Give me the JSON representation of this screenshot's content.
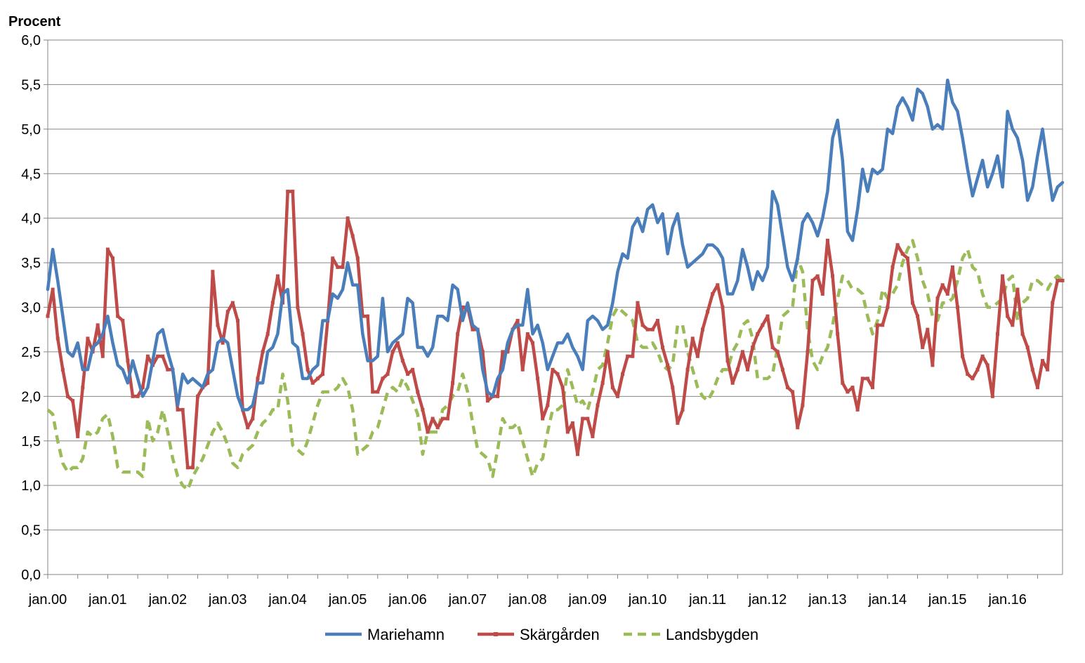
{
  "chart_data": {
    "type": "line",
    "title": "",
    "ylabel": "Procent",
    "xlabel": "",
    "ylim": [
      0,
      6
    ],
    "y_ticks": [
      0,
      0.5,
      1,
      1.5,
      2,
      2.5,
      3,
      3.5,
      4,
      4.5,
      5,
      5.5,
      6
    ],
    "y_tick_labels": [
      "0,0",
      "0,5",
      "1,0",
      "1,5",
      "2,0",
      "2,5",
      "3,0",
      "3,5",
      "4,0",
      "4,5",
      "5,0",
      "5,5",
      "6,0"
    ],
    "x_tick_labels": [
      "jan.00",
      "jan.01",
      "jan.02",
      "jan.03",
      "jan.04",
      "jan.05",
      "jan.06",
      "jan.07",
      "jan.08",
      "jan.09",
      "jan.10",
      "jan.11",
      "jan.12",
      "jan.13",
      "jan.14",
      "jan.15",
      "jan.16"
    ],
    "x_start": "2000-01",
    "x_frequency": "monthly",
    "grid": "horizontal",
    "legend_position": "bottom",
    "series": [
      {
        "name": "Mariehamn",
        "color": "#4a7ebb",
        "style": "solid",
        "values": [
          3.2,
          3.65,
          3.3,
          2.9,
          2.5,
          2.45,
          2.6,
          2.3,
          2.3,
          2.55,
          2.6,
          2.7,
          2.9,
          2.6,
          2.35,
          2.3,
          2.15,
          2.4,
          2.2,
          2.0,
          2.1,
          2.4,
          2.7,
          2.75,
          2.5,
          2.3,
          1.9,
          2.25,
          2.15,
          2.2,
          2.15,
          2.1,
          2.25,
          2.3,
          2.6,
          2.65,
          2.6,
          2.3,
          2.0,
          1.85,
          1.85,
          1.9,
          2.15,
          2.15,
          2.5,
          2.55,
          2.7,
          3.15,
          3.2,
          2.6,
          2.55,
          2.2,
          2.2,
          2.3,
          2.35,
          2.85,
          2.85,
          3.15,
          3.1,
          3.2,
          3.5,
          3.25,
          3.25,
          2.7,
          2.4,
          2.4,
          2.45,
          3.1,
          2.5,
          2.6,
          2.65,
          2.7,
          3.1,
          3.05,
          2.55,
          2.55,
          2.45,
          2.55,
          2.9,
          2.9,
          2.85,
          3.25,
          3.2,
          2.85,
          3.05,
          2.8,
          2.75,
          2.3,
          2.05,
          2.0,
          2.2,
          2.3,
          2.6,
          2.75,
          2.8,
          2.8,
          3.2,
          2.7,
          2.8,
          2.6,
          2.3,
          2.45,
          2.6,
          2.6,
          2.7,
          2.55,
          2.45,
          2.3,
          2.85,
          2.9,
          2.85,
          2.75,
          2.8,
          3.05,
          3.4,
          3.6,
          3.55,
          3.9,
          4.0,
          3.85,
          4.1,
          4.15,
          3.95,
          4.05,
          3.6,
          3.9,
          4.05,
          3.7,
          3.45,
          3.5,
          3.55,
          3.6,
          3.7,
          3.7,
          3.65,
          3.55,
          3.15,
          3.15,
          3.3,
          3.65,
          3.45,
          3.2,
          3.4,
          3.3,
          3.45,
          4.3,
          4.15,
          3.8,
          3.45,
          3.3,
          3.55,
          3.95,
          4.05,
          3.95,
          3.8,
          4.0,
          4.3,
          4.9,
          5.1,
          4.65,
          3.85,
          3.75,
          4.1,
          4.55,
          4.3,
          4.55,
          4.5,
          4.55,
          5.0,
          4.95,
          5.25,
          5.35,
          5.25,
          5.1,
          5.45,
          5.4,
          5.25,
          5.0,
          5.05,
          5.0,
          5.55,
          5.3,
          5.2,
          4.9,
          4.55,
          4.25,
          4.45,
          4.65,
          4.35,
          4.5,
          4.7,
          4.35,
          5.2,
          5.0,
          4.9,
          4.65,
          4.2,
          4.35,
          4.7,
          5.0,
          4.6,
          4.2,
          4.35,
          4.4
        ]
      },
      {
        "name": "Skärgården",
        "color": "#be4b48",
        "style": "solid-markers",
        "values": [
          2.9,
          3.2,
          2.65,
          2.3,
          2.0,
          1.95,
          1.55,
          2.1,
          2.65,
          2.5,
          2.8,
          2.45,
          3.65,
          3.55,
          2.9,
          2.85,
          2.4,
          2.0,
          2.0,
          2.1,
          2.45,
          2.35,
          2.45,
          2.45,
          2.3,
          2.3,
          1.85,
          1.85,
          1.2,
          1.2,
          2.0,
          2.1,
          2.15,
          3.4,
          2.8,
          2.6,
          2.95,
          3.05,
          2.85,
          1.85,
          1.65,
          1.75,
          2.2,
          2.5,
          2.7,
          3.05,
          3.35,
          3.05,
          4.3,
          4.3,
          3.0,
          2.7,
          2.3,
          2.15,
          2.2,
          2.25,
          2.85,
          3.55,
          3.45,
          3.45,
          4.0,
          3.8,
          3.55,
          2.9,
          2.9,
          2.05,
          2.05,
          2.2,
          2.25,
          2.5,
          2.6,
          2.4,
          2.25,
          2.3,
          2.05,
          1.85,
          1.6,
          1.75,
          1.65,
          1.75,
          1.75,
          2.15,
          2.7,
          3.0,
          3.0,
          2.75,
          2.75,
          2.5,
          1.95,
          2.0,
          2.0,
          2.5,
          2.5,
          2.75,
          2.85,
          2.3,
          2.7,
          2.6,
          2.2,
          1.75,
          1.9,
          2.3,
          2.25,
          2.1,
          1.6,
          1.7,
          1.35,
          1.75,
          1.75,
          1.55,
          1.9,
          2.15,
          2.5,
          2.1,
          2.0,
          2.25,
          2.45,
          2.45,
          3.05,
          2.8,
          2.75,
          2.75,
          2.85,
          2.55,
          2.35,
          2.1,
          1.7,
          1.85,
          2.3,
          2.65,
          2.45,
          2.75,
          2.95,
          3.15,
          3.25,
          3.0,
          2.4,
          2.15,
          2.3,
          2.5,
          2.3,
          2.55,
          2.7,
          2.8,
          2.9,
          2.55,
          2.5,
          2.3,
          2.1,
          2.05,
          1.65,
          1.9,
          2.5,
          3.3,
          3.35,
          3.15,
          3.75,
          3.35,
          2.7,
          2.15,
          2.05,
          2.1,
          1.85,
          2.2,
          2.2,
          2.1,
          2.8,
          2.8,
          3.0,
          3.45,
          3.7,
          3.6,
          3.55,
          3.05,
          2.9,
          2.55,
          2.75,
          2.35,
          3.1,
          3.25,
          3.15,
          3.45,
          3.0,
          2.45,
          2.25,
          2.2,
          2.3,
          2.45,
          2.35,
          2.0,
          2.7,
          3.35,
          2.9,
          2.8,
          3.2,
          2.7,
          2.55,
          2.3,
          2.1,
          2.4,
          2.3,
          3.05,
          3.3,
          3.3
        ]
      },
      {
        "name": "Landsbygden",
        "color": "#9bbb59",
        "style": "dashed",
        "values": [
          1.85,
          1.8,
          1.5,
          1.25,
          1.15,
          1.2,
          1.2,
          1.3,
          1.6,
          1.55,
          1.6,
          1.75,
          1.8,
          1.55,
          1.2,
          1.15,
          1.15,
          1.15,
          1.15,
          1.1,
          1.75,
          1.5,
          1.6,
          1.85,
          1.6,
          1.3,
          1.1,
          1.0,
          0.95,
          1.1,
          1.2,
          1.3,
          1.45,
          1.6,
          1.7,
          1.6,
          1.45,
          1.25,
          1.2,
          1.35,
          1.4,
          1.45,
          1.6,
          1.7,
          1.75,
          1.85,
          1.85,
          2.25,
          1.95,
          1.45,
          1.4,
          1.35,
          1.5,
          1.7,
          1.9,
          2.05,
          2.05,
          2.05,
          2.1,
          2.2,
          2.1,
          1.85,
          1.35,
          1.4,
          1.45,
          1.6,
          1.65,
          1.85,
          2.05,
          2.1,
          2.05,
          2.2,
          2.1,
          1.95,
          1.8,
          1.35,
          1.6,
          1.6,
          1.6,
          1.85,
          1.9,
          2.0,
          2.05,
          2.25,
          2.05,
          1.7,
          1.4,
          1.35,
          1.3,
          1.1,
          1.4,
          1.75,
          1.65,
          1.65,
          1.7,
          1.5,
          1.3,
          1.1,
          1.25,
          1.3,
          1.6,
          1.85,
          1.85,
          1.9,
          2.3,
          2.1,
          1.9,
          1.95,
          1.85,
          2.05,
          2.3,
          2.35,
          2.6,
          2.9,
          3.0,
          2.95,
          2.9,
          2.85,
          2.6,
          2.55,
          2.55,
          2.6,
          2.5,
          2.35,
          2.3,
          2.35,
          2.8,
          2.8,
          2.5,
          2.3,
          2.1,
          2.0,
          1.95,
          2.05,
          2.2,
          2.3,
          2.3,
          2.5,
          2.6,
          2.8,
          2.85,
          2.65,
          2.2,
          2.2,
          2.2,
          2.25,
          2.55,
          2.9,
          2.95,
          3.0,
          3.55,
          3.4,
          2.75,
          2.4,
          2.3,
          2.45,
          2.55,
          2.8,
          3.1,
          3.35,
          3.3,
          3.2,
          3.2,
          3.15,
          2.9,
          2.7,
          2.85,
          3.2,
          3.1,
          3.15,
          3.25,
          3.5,
          3.65,
          3.75,
          3.55,
          3.3,
          3.15,
          2.9,
          2.85,
          3.05,
          3.05,
          3.1,
          3.3,
          3.55,
          3.65,
          3.45,
          3.4,
          3.15,
          3.0,
          3.0,
          3.05,
          3.1,
          3.3,
          3.35,
          2.85,
          3.05,
          3.1,
          3.3,
          3.3,
          3.25,
          3.2,
          3.3,
          3.35,
          3.3
        ]
      }
    ]
  }
}
